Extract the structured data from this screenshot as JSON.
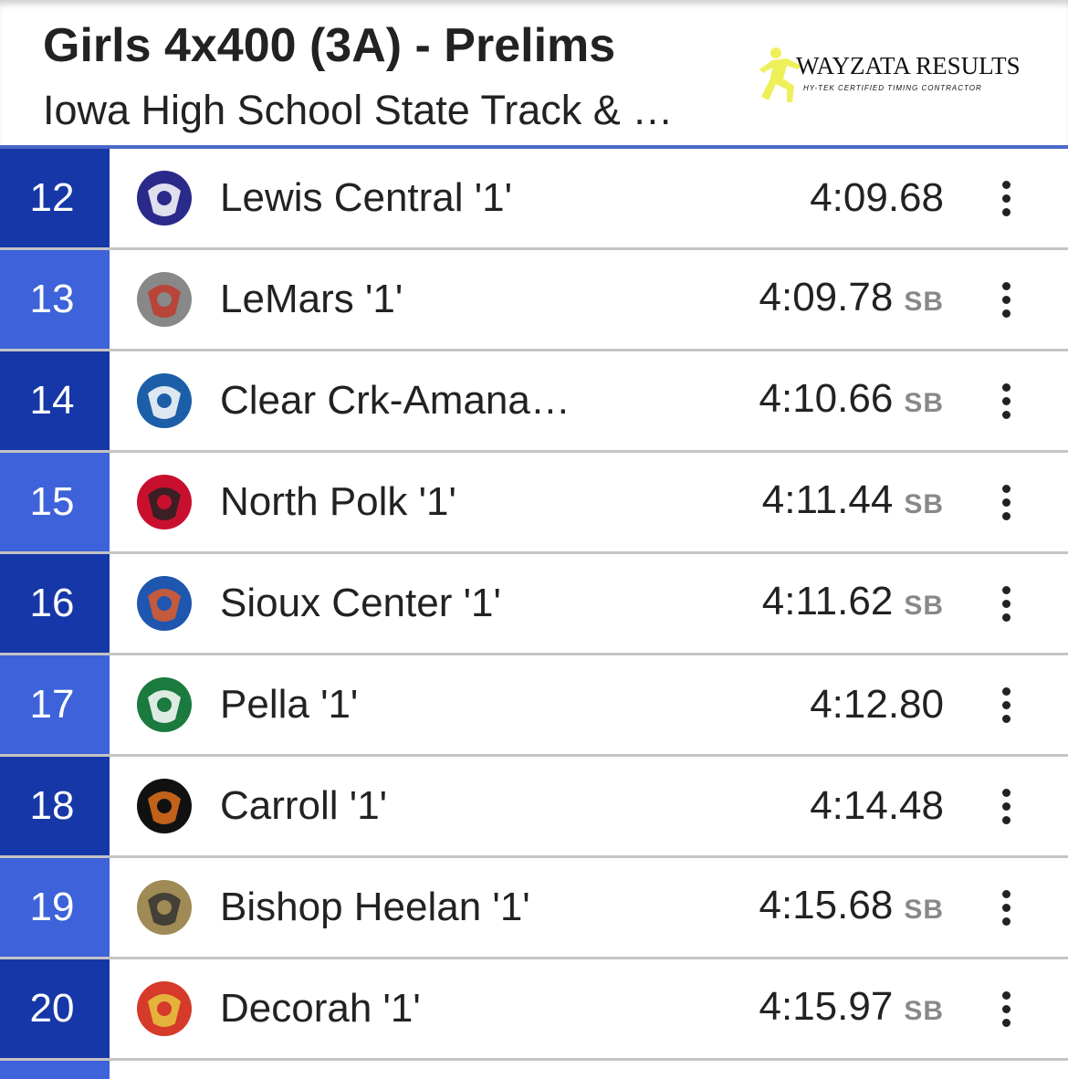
{
  "header": {
    "title": "Girls 4x400 (3A) - Prelims",
    "subtitle": "Iowa High School State Track & …",
    "logo": {
      "brand": "WAYZATA RESULTS",
      "tagline": "HY-TEK CERTIFIED TIMING CONTRACTOR"
    }
  },
  "colors": {
    "place_dark": "#1637a8",
    "place_light": "#3d62d9",
    "accent_line": "#4a67c8"
  },
  "results": [
    {
      "place": "12",
      "team": "Lewis Central '1'",
      "time": "4:09.68",
      "badge": "",
      "logo": "titan-logo-icon",
      "c1": "#2a2a8a",
      "c2": "#fff"
    },
    {
      "place": "13",
      "team": "LeMars '1'",
      "time": "4:09.78",
      "badge": "SB",
      "logo": "bulldog-logo-icon",
      "c1": "#888",
      "c2": "#c0392b"
    },
    {
      "place": "14",
      "team": "Clear Crk-Amana…",
      "time": "4:10.66",
      "badge": "SB",
      "logo": "clipper-ship-logo-icon",
      "c1": "#1c5fa8",
      "c2": "#fff"
    },
    {
      "place": "15",
      "team": "North Polk '1'",
      "time": "4:11.44",
      "badge": "SB",
      "logo": "np-comets-logo-icon",
      "c1": "#c8102e",
      "c2": "#222"
    },
    {
      "place": "16",
      "team": "Sioux Center '1'",
      "time": "4:11.62",
      "badge": "SB",
      "logo": "warrior-logo-icon",
      "c1": "#1e56b0",
      "c2": "#e05a2a"
    },
    {
      "place": "17",
      "team": "Pella '1'",
      "time": "4:12.80",
      "badge": "",
      "logo": "pella-dutch-logo-icon",
      "c1": "#1b7a3e",
      "c2": "#fff"
    },
    {
      "place": "18",
      "team": "Carroll '1'",
      "time": "4:14.48",
      "badge": "",
      "logo": "tiger-logo-icon",
      "c1": "#111",
      "c2": "#e0701e"
    },
    {
      "place": "19",
      "team": "Bishop Heelan '1'",
      "time": "4:15.68",
      "badge": "SB",
      "logo": "bh-monogram-logo-icon",
      "c1": "#a08a55",
      "c2": "#333"
    },
    {
      "place": "20",
      "team": "Decorah '1'",
      "time": "4:15.97",
      "badge": "SB",
      "logo": "viking-logo-icon",
      "c1": "#d63a2a",
      "c2": "#e8c840"
    }
  ]
}
